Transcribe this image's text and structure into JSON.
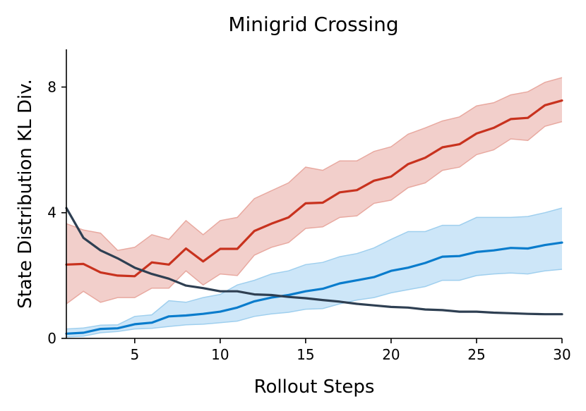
{
  "chart_data": {
    "type": "line",
    "title": "Minigrid Crossing",
    "xlabel": "Rollout Steps",
    "ylabel": "State Distribution KL Div.",
    "xlim": [
      1,
      30
    ],
    "ylim": [
      0,
      9.2
    ],
    "xticks": [
      5,
      10,
      15,
      20,
      25,
      30
    ],
    "yticks": [
      0,
      4,
      8
    ],
    "x": [
      1,
      2,
      3,
      4,
      5,
      6,
      7,
      8,
      9,
      10,
      11,
      12,
      13,
      14,
      15,
      16,
      17,
      18,
      19,
      20,
      21,
      22,
      23,
      24,
      25,
      26,
      27,
      28,
      29,
      30
    ],
    "series": [
      {
        "name": "red",
        "color": "#c8321e",
        "band_color": "#f2cfcb",
        "band_edge": "#e8a9a0",
        "values": [
          2.35,
          2.37,
          2.1,
          2.0,
          1.98,
          2.42,
          2.35,
          2.86,
          2.45,
          2.85,
          2.85,
          3.42,
          3.65,
          3.85,
          4.3,
          4.32,
          4.65,
          4.72,
          5.02,
          5.15,
          5.55,
          5.75,
          6.08,
          6.18,
          6.52,
          6.7,
          6.98,
          7.02,
          7.42,
          7.57
        ],
        "upper": [
          3.65,
          3.45,
          3.35,
          2.8,
          2.9,
          3.3,
          3.15,
          3.75,
          3.3,
          3.75,
          3.85,
          4.45,
          4.7,
          4.95,
          5.45,
          5.35,
          5.65,
          5.65,
          5.95,
          6.1,
          6.5,
          6.7,
          6.92,
          7.05,
          7.4,
          7.5,
          7.75,
          7.85,
          8.15,
          8.3
        ],
        "lower": [
          1.1,
          1.5,
          1.15,
          1.3,
          1.3,
          1.6,
          1.6,
          2.15,
          1.7,
          2.05,
          2.0,
          2.65,
          2.9,
          3.05,
          3.5,
          3.55,
          3.85,
          3.9,
          4.3,
          4.4,
          4.8,
          4.95,
          5.35,
          5.45,
          5.85,
          6.0,
          6.35,
          6.3,
          6.75,
          6.9
        ]
      },
      {
        "name": "blue",
        "color": "#0a7ccc",
        "band_color": "#cde6f8",
        "band_edge": "#9fcfee",
        "values": [
          0.15,
          0.18,
          0.3,
          0.32,
          0.45,
          0.5,
          0.7,
          0.73,
          0.78,
          0.85,
          0.98,
          1.18,
          1.3,
          1.38,
          1.5,
          1.58,
          1.75,
          1.85,
          1.95,
          2.15,
          2.25,
          2.4,
          2.6,
          2.62,
          2.75,
          2.8,
          2.88,
          2.86,
          2.97,
          3.05
        ],
        "upper": [
          0.3,
          0.33,
          0.42,
          0.43,
          0.7,
          0.75,
          1.2,
          1.15,
          1.3,
          1.4,
          1.7,
          1.85,
          2.05,
          2.15,
          2.35,
          2.42,
          2.6,
          2.7,
          2.88,
          3.15,
          3.4,
          3.4,
          3.6,
          3.6,
          3.85,
          3.85,
          3.85,
          3.88,
          4.0,
          4.15
        ],
        "lower": [
          0.05,
          0.07,
          0.18,
          0.22,
          0.3,
          0.32,
          0.38,
          0.43,
          0.45,
          0.5,
          0.55,
          0.7,
          0.78,
          0.83,
          0.93,
          0.95,
          1.1,
          1.22,
          1.3,
          1.45,
          1.55,
          1.65,
          1.85,
          1.85,
          2.0,
          2.05,
          2.08,
          2.05,
          2.15,
          2.2
        ]
      },
      {
        "name": "dark",
        "color": "#2e3f52",
        "values": [
          4.15,
          3.2,
          2.8,
          2.55,
          2.25,
          2.05,
          1.9,
          1.68,
          1.6,
          1.5,
          1.5,
          1.4,
          1.38,
          1.32,
          1.28,
          1.22,
          1.17,
          1.1,
          1.05,
          1.0,
          0.98,
          0.92,
          0.9,
          0.85,
          0.85,
          0.82,
          0.8,
          0.78,
          0.77,
          0.77
        ]
      }
    ]
  }
}
